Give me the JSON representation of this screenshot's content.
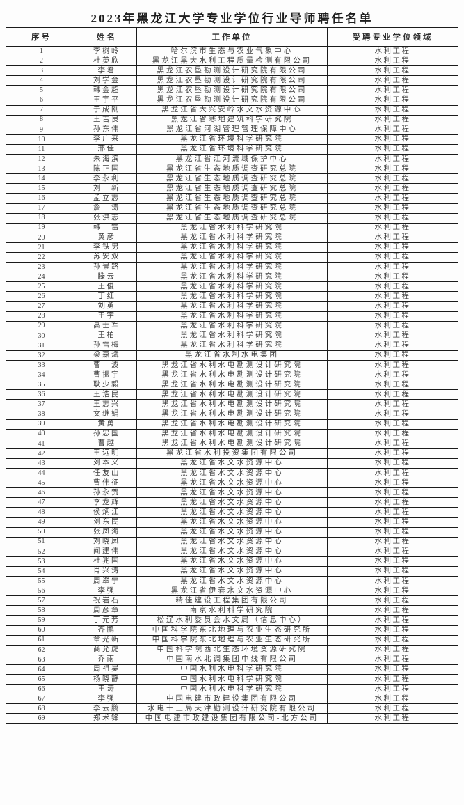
{
  "document": {
    "title": "2023年黑龙江大学专业学位行业导师聘任名单"
  },
  "table": {
    "headers": [
      "序号",
      "姓名",
      "工作单位",
      "受聘专业学位领域"
    ],
    "rows": [
      {
        "no": "1",
        "name": "李树岭",
        "unit": "哈尔滨市生态与农业气象中心",
        "field": "水利工程"
      },
      {
        "no": "2",
        "name": "杜英欣",
        "unit": "黑龙江黑大水利工程质量检测有限公司",
        "field": "水利工程"
      },
      {
        "no": "3",
        "name": "李君",
        "unit": "黑龙江农垦勘测设计研究院有限公司",
        "field": "水利工程"
      },
      {
        "no": "4",
        "name": "刘学金",
        "unit": "黑龙江农垦勘测设计研究院有限公司",
        "field": "水利工程"
      },
      {
        "no": "5",
        "name": "韩金超",
        "unit": "黑龙江农垦勘测设计研究院有限公司",
        "field": "水利工程"
      },
      {
        "no": "6",
        "name": "王宇平",
        "unit": "黑龙江农垦勘测设计研究院有限公司",
        "field": "水利工程"
      },
      {
        "no": "7",
        "name": "于成刚",
        "unit": "黑龙江省大兴安岭水文水资源中心",
        "field": "水利工程"
      },
      {
        "no": "8",
        "name": "王吉良",
        "unit": "黑龙江省寒地建筑科学研究院",
        "field": "水利工程"
      },
      {
        "no": "9",
        "name": "孙东伟",
        "unit": "黑龙江省河湖管理管理保障中心",
        "field": "水利工程"
      },
      {
        "no": "10",
        "name": "李广来",
        "unit": "黑龙江省环境科学研究院",
        "field": "水利工程"
      },
      {
        "no": "11",
        "name": "邢佳",
        "unit": "黑龙江省环境科学研究院",
        "field": "水利工程"
      },
      {
        "no": "12",
        "name": "朱海滨",
        "unit": "黑龙江省江河流域保护中心",
        "field": "水利工程"
      },
      {
        "no": "13",
        "name": "陈正国",
        "unit": "黑龙江省生态地质调查研究总院",
        "field": "水利工程"
      },
      {
        "no": "14",
        "name": "李永利",
        "unit": "黑龙江省生态地质调查研究总院",
        "field": "水利工程"
      },
      {
        "no": "15",
        "name": "刘　新",
        "unit": "黑龙江省生态地质调查研究总院",
        "field": "水利工程"
      },
      {
        "no": "16",
        "name": "孟立志",
        "unit": "黑龙江省生态地质调查研究总院",
        "field": "水利工程"
      },
      {
        "no": "17",
        "name": "詹　涛",
        "unit": "黑龙江省生态地质调查研究总院",
        "field": "水利工程"
      },
      {
        "no": "18",
        "name": "张洪志",
        "unit": "黑龙江省生态地质调查研究总院",
        "field": "水利工程"
      },
      {
        "no": "19",
        "name": "韩　雷",
        "unit": "黑龙江省水利科学研究院",
        "field": "水利工程"
      },
      {
        "no": "20",
        "name": "黄彦",
        "unit": "黑龙江省水利科学研究院",
        "field": "水利工程"
      },
      {
        "no": "21",
        "name": "李铁男",
        "unit": "黑龙江省水利科学研究院",
        "field": "水利工程"
      },
      {
        "no": "22",
        "name": "苏安双",
        "unit": "黑龙江省水利科学研究院",
        "field": "水利工程"
      },
      {
        "no": "23",
        "name": "孙景路",
        "unit": "黑龙江省水利科学研究院",
        "field": "水利工程"
      },
      {
        "no": "24",
        "name": "滕云",
        "unit": "黑龙江省水利科学研究院",
        "field": "水利工程"
      },
      {
        "no": "25",
        "name": "王俊",
        "unit": "黑龙江省水利科学研究院",
        "field": "水利工程"
      },
      {
        "no": "26",
        "name": "丁红",
        "unit": "黑龙江省水利科学研究院",
        "field": "水利工程"
      },
      {
        "no": "27",
        "name": "刘勇",
        "unit": "黑龙江省水利科学研究院",
        "field": "水利工程"
      },
      {
        "no": "28",
        "name": "王宇",
        "unit": "黑龙江省水利科学研究院",
        "field": "水利工程"
      },
      {
        "no": "29",
        "name": "高士军",
        "unit": "黑龙江省水利科学研究院",
        "field": "水利工程"
      },
      {
        "no": "30",
        "name": "王柏",
        "unit": "黑龙江省水利科学研究院",
        "field": "水利工程"
      },
      {
        "no": "31",
        "name": "孙雪梅",
        "unit": "黑龙江省水利科学研究院",
        "field": "水利工程"
      },
      {
        "no": "32",
        "name": "梁嘉斌",
        "unit": "黑龙江省水利水电集团",
        "field": "水利工程"
      },
      {
        "no": "33",
        "name": "曹　波",
        "unit": "黑龙江省水利水电勘测设计研究院",
        "field": "水利工程"
      },
      {
        "no": "34",
        "name": "曹振宇",
        "unit": "黑龙江省水利水电勘测设计研究院",
        "field": "水利工程"
      },
      {
        "no": "35",
        "name": "耿少毅",
        "unit": "黑龙江省水利水电勘测设计研究院",
        "field": "水利工程"
      },
      {
        "no": "36",
        "name": "王浩民",
        "unit": "黑龙江省水利水电勘测设计研究院",
        "field": "水利工程"
      },
      {
        "no": "37",
        "name": "王志兴",
        "unit": "黑龙江省水利水电勘测设计研究院",
        "field": "水利工程"
      },
      {
        "no": "38",
        "name": "文继娟",
        "unit": "黑龙江省水利水电勘测设计研究院",
        "field": "水利工程"
      },
      {
        "no": "39",
        "name": "黄勇",
        "unit": "黑龙江省水利水电勘测设计研究院",
        "field": "水利工程"
      },
      {
        "no": "40",
        "name": "孙忠国",
        "unit": "黑龙江省水利水电勘测设计研究院",
        "field": "水利工程"
      },
      {
        "no": "41",
        "name": "曹越",
        "unit": "黑龙江省水利水电勘测设计研究院",
        "field": "水利工程"
      },
      {
        "no": "42",
        "name": "王远明",
        "unit": "黑龙江省水利投资集团有限公司",
        "field": "水利工程"
      },
      {
        "no": "43",
        "name": "刘本义",
        "unit": "黑龙江省水文水资源中心",
        "field": "水利工程"
      },
      {
        "no": "44",
        "name": "任友山",
        "unit": "黑龙江省水文水资源中心",
        "field": "水利工程"
      },
      {
        "no": "45",
        "name": "曹伟征",
        "unit": "黑龙江省水文水资源中心",
        "field": "水利工程"
      },
      {
        "no": "46",
        "name": "孙永贺",
        "unit": "黑龙江省水文水资源中心",
        "field": "水利工程"
      },
      {
        "no": "47",
        "name": "李龙辉",
        "unit": "黑龙江省水文水资源中心",
        "field": "水利工程"
      },
      {
        "no": "48",
        "name": "侯炳江",
        "unit": "黑龙江省水文水资源中心",
        "field": "水利工程"
      },
      {
        "no": "49",
        "name": "刘东民",
        "unit": "黑龙江省水文水资源中心",
        "field": "水利工程"
      },
      {
        "no": "50",
        "name": "张凤海",
        "unit": "黑龙江省水文水资源中心",
        "field": "水利工程"
      },
      {
        "no": "51",
        "name": "刘晓凤",
        "unit": "黑龙江省水文水资源中心",
        "field": "水利工程"
      },
      {
        "no": "52",
        "name": "闻建伟",
        "unit": "黑龙江省水文水资源中心",
        "field": "水利工程"
      },
      {
        "no": "53",
        "name": "杜兆国",
        "unit": "黑龙江省水文水资源中心",
        "field": "水利工程"
      },
      {
        "no": "54",
        "name": "肖兴涛",
        "unit": "黑龙江省水文水资源中心",
        "field": "水利工程"
      },
      {
        "no": "55",
        "name": "周翠宁",
        "unit": "黑龙江省水文水资源中心",
        "field": "水利工程"
      },
      {
        "no": "56",
        "name": "李强",
        "unit": "黑龙江省伊春水文水资源中心",
        "field": "水利工程"
      },
      {
        "no": "57",
        "name": "祝岩石",
        "unit": "精佳建设工程集团有限公司",
        "field": "水利工程"
      },
      {
        "no": "58",
        "name": "周彦章",
        "unit": "南京水利科学研究院",
        "field": "水利工程"
      },
      {
        "no": "59",
        "name": "丁元芳",
        "unit": "松辽水利委员会水文局（信息中心）",
        "field": "水利工程"
      },
      {
        "no": "60",
        "name": "齐鹏",
        "unit": "中国科学院东北地理与农业生态研究所",
        "field": "水利工程"
      },
      {
        "no": "61",
        "name": "章光新",
        "unit": "中国科学院东北地理与农业生态研究所",
        "field": "水利工程"
      },
      {
        "no": "62",
        "name": "商允虎",
        "unit": "中国科学院西北生态环境资源研究院",
        "field": "水利工程"
      },
      {
        "no": "63",
        "name": "乔雨",
        "unit": "中国南水北调集团中线有限公司",
        "field": "水利工程"
      },
      {
        "no": "64",
        "name": "周祖昊",
        "unit": "中国水利水电科学研究院",
        "field": "水利工程"
      },
      {
        "no": "65",
        "name": "杨晓静",
        "unit": "中国水利水电科学研究院",
        "field": "水利工程"
      },
      {
        "no": "66",
        "name": "王涛",
        "unit": "中国水利水电科学研究院",
        "field": "水利工程"
      },
      {
        "no": "67",
        "name": "李强",
        "unit": "中国电建市政建设集团有限公司",
        "field": "水利工程"
      },
      {
        "no": "68",
        "name": "李云鹏",
        "unit": "水电十三局天津勘测设计研究院有限公司",
        "field": "水利工程"
      },
      {
        "no": "69",
        "name": "郑术锋",
        "unit": "中国电建市政建设集团有限公司-北方公司",
        "field": "水利工程"
      }
    ]
  }
}
